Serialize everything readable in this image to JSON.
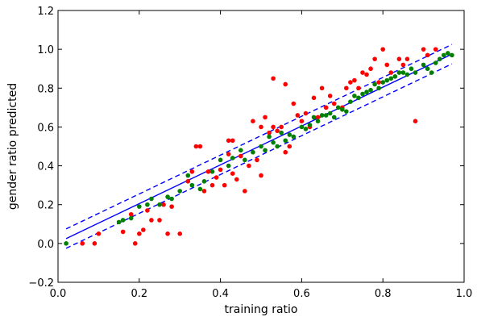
{
  "chart_data": {
    "type": "scatter",
    "xlabel": "training ratio",
    "ylabel": "gender ratio predicted",
    "xlim": [
      0.0,
      1.0
    ],
    "ylim": [
      -0.2,
      1.2
    ],
    "x_ticks": [
      "0.0",
      "0.2",
      "0.4",
      "0.6",
      "0.8",
      "1.0"
    ],
    "y_ticks": [
      "−0.2",
      "0.0",
      "0.2",
      "0.4",
      "0.6",
      "0.8",
      "1.0",
      "1.2"
    ],
    "grid": false,
    "lines": [
      {
        "style": "solid",
        "color": "#0000ff",
        "x": [
          0.02,
          0.97
        ],
        "y": [
          0.025,
          0.975
        ]
      },
      {
        "style": "dashed",
        "color": "#0000ff",
        "x": [
          0.02,
          0.97
        ],
        "y": [
          0.075,
          1.025
        ]
      },
      {
        "style": "dashed",
        "color": "#0000ff",
        "x": [
          0.02,
          0.97
        ],
        "y": [
          -0.025,
          0.925
        ]
      }
    ],
    "series": [
      {
        "color": "#ff0000",
        "points": [
          [
            0.06,
            0.0
          ],
          [
            0.09,
            0.0
          ],
          [
            0.1,
            0.05
          ],
          [
            0.16,
            0.06
          ],
          [
            0.18,
            0.15
          ],
          [
            0.19,
            0.0
          ],
          [
            0.2,
            0.05
          ],
          [
            0.21,
            0.07
          ],
          [
            0.22,
            0.17
          ],
          [
            0.23,
            0.12
          ],
          [
            0.25,
            0.12
          ],
          [
            0.26,
            0.2
          ],
          [
            0.27,
            0.05
          ],
          [
            0.28,
            0.19
          ],
          [
            0.3,
            0.05
          ],
          [
            0.32,
            0.32
          ],
          [
            0.33,
            0.37
          ],
          [
            0.34,
            0.5
          ],
          [
            0.35,
            0.5
          ],
          [
            0.36,
            0.27
          ],
          [
            0.37,
            0.37
          ],
          [
            0.38,
            0.3
          ],
          [
            0.39,
            0.34
          ],
          [
            0.4,
            0.38
          ],
          [
            0.41,
            0.3
          ],
          [
            0.42,
            0.46
          ],
          [
            0.42,
            0.53
          ],
          [
            0.43,
            0.53
          ],
          [
            0.43,
            0.36
          ],
          [
            0.44,
            0.33
          ],
          [
            0.45,
            0.45
          ],
          [
            0.46,
            0.27
          ],
          [
            0.47,
            0.4
          ],
          [
            0.48,
            0.63
          ],
          [
            0.49,
            0.43
          ],
          [
            0.5,
            0.35
          ],
          [
            0.5,
            0.6
          ],
          [
            0.51,
            0.65
          ],
          [
            0.52,
            0.57
          ],
          [
            0.53,
            0.6
          ],
          [
            0.53,
            0.85
          ],
          [
            0.54,
            0.58
          ],
          [
            0.55,
            0.6
          ],
          [
            0.56,
            0.82
          ],
          [
            0.56,
            0.47
          ],
          [
            0.57,
            0.5
          ],
          [
            0.58,
            0.72
          ],
          [
            0.59,
            0.66
          ],
          [
            0.6,
            0.63
          ],
          [
            0.61,
            0.67
          ],
          [
            0.62,
            0.6
          ],
          [
            0.63,
            0.75
          ],
          [
            0.64,
            0.65
          ],
          [
            0.65,
            0.8
          ],
          [
            0.66,
            0.7
          ],
          [
            0.67,
            0.76
          ],
          [
            0.68,
            0.72
          ],
          [
            0.7,
            0.7
          ],
          [
            0.71,
            0.8
          ],
          [
            0.72,
            0.83
          ],
          [
            0.73,
            0.84
          ],
          [
            0.74,
            0.8
          ],
          [
            0.75,
            0.88
          ],
          [
            0.76,
            0.87
          ],
          [
            0.77,
            0.9
          ],
          [
            0.78,
            0.95
          ],
          [
            0.79,
            0.83
          ],
          [
            0.8,
            1.0
          ],
          [
            0.81,
            0.92
          ],
          [
            0.82,
            0.88
          ],
          [
            0.84,
            0.95
          ],
          [
            0.85,
            0.92
          ],
          [
            0.86,
            0.95
          ],
          [
            0.88,
            0.63
          ],
          [
            0.9,
            1.0
          ],
          [
            0.91,
            0.97
          ],
          [
            0.93,
            1.0
          ]
        ]
      },
      {
        "color": "#008000",
        "points": [
          [
            0.02,
            0.0
          ],
          [
            0.15,
            0.11
          ],
          [
            0.16,
            0.12
          ],
          [
            0.18,
            0.13
          ],
          [
            0.2,
            0.19
          ],
          [
            0.22,
            0.2
          ],
          [
            0.23,
            0.23
          ],
          [
            0.25,
            0.2
          ],
          [
            0.27,
            0.24
          ],
          [
            0.28,
            0.23
          ],
          [
            0.3,
            0.27
          ],
          [
            0.32,
            0.35
          ],
          [
            0.33,
            0.3
          ],
          [
            0.35,
            0.28
          ],
          [
            0.36,
            0.32
          ],
          [
            0.38,
            0.37
          ],
          [
            0.4,
            0.43
          ],
          [
            0.42,
            0.4
          ],
          [
            0.43,
            0.44
          ],
          [
            0.45,
            0.48
          ],
          [
            0.46,
            0.43
          ],
          [
            0.48,
            0.47
          ],
          [
            0.5,
            0.5
          ],
          [
            0.51,
            0.48
          ],
          [
            0.52,
            0.55
          ],
          [
            0.53,
            0.52
          ],
          [
            0.54,
            0.5
          ],
          [
            0.55,
            0.57
          ],
          [
            0.56,
            0.53
          ],
          [
            0.57,
            0.56
          ],
          [
            0.58,
            0.55
          ],
          [
            0.6,
            0.6
          ],
          [
            0.61,
            0.59
          ],
          [
            0.62,
            0.61
          ],
          [
            0.63,
            0.65
          ],
          [
            0.64,
            0.63
          ],
          [
            0.65,
            0.66
          ],
          [
            0.66,
            0.66
          ],
          [
            0.67,
            0.67
          ],
          [
            0.68,
            0.65
          ],
          [
            0.69,
            0.7
          ],
          [
            0.7,
            0.69
          ],
          [
            0.71,
            0.68
          ],
          [
            0.72,
            0.73
          ],
          [
            0.73,
            0.76
          ],
          [
            0.74,
            0.75
          ],
          [
            0.75,
            0.77
          ],
          [
            0.76,
            0.78
          ],
          [
            0.77,
            0.79
          ],
          [
            0.78,
            0.82
          ],
          [
            0.79,
            0.8
          ],
          [
            0.8,
            0.83
          ],
          [
            0.81,
            0.84
          ],
          [
            0.82,
            0.85
          ],
          [
            0.83,
            0.86
          ],
          [
            0.84,
            0.88
          ],
          [
            0.85,
            0.88
          ],
          [
            0.86,
            0.87
          ],
          [
            0.87,
            0.9
          ],
          [
            0.88,
            0.88
          ],
          [
            0.9,
            0.92
          ],
          [
            0.91,
            0.9
          ],
          [
            0.92,
            0.88
          ],
          [
            0.93,
            0.93
          ],
          [
            0.94,
            0.95
          ],
          [
            0.95,
            0.97
          ],
          [
            0.96,
            0.98
          ],
          [
            0.97,
            0.97
          ]
        ]
      }
    ]
  }
}
